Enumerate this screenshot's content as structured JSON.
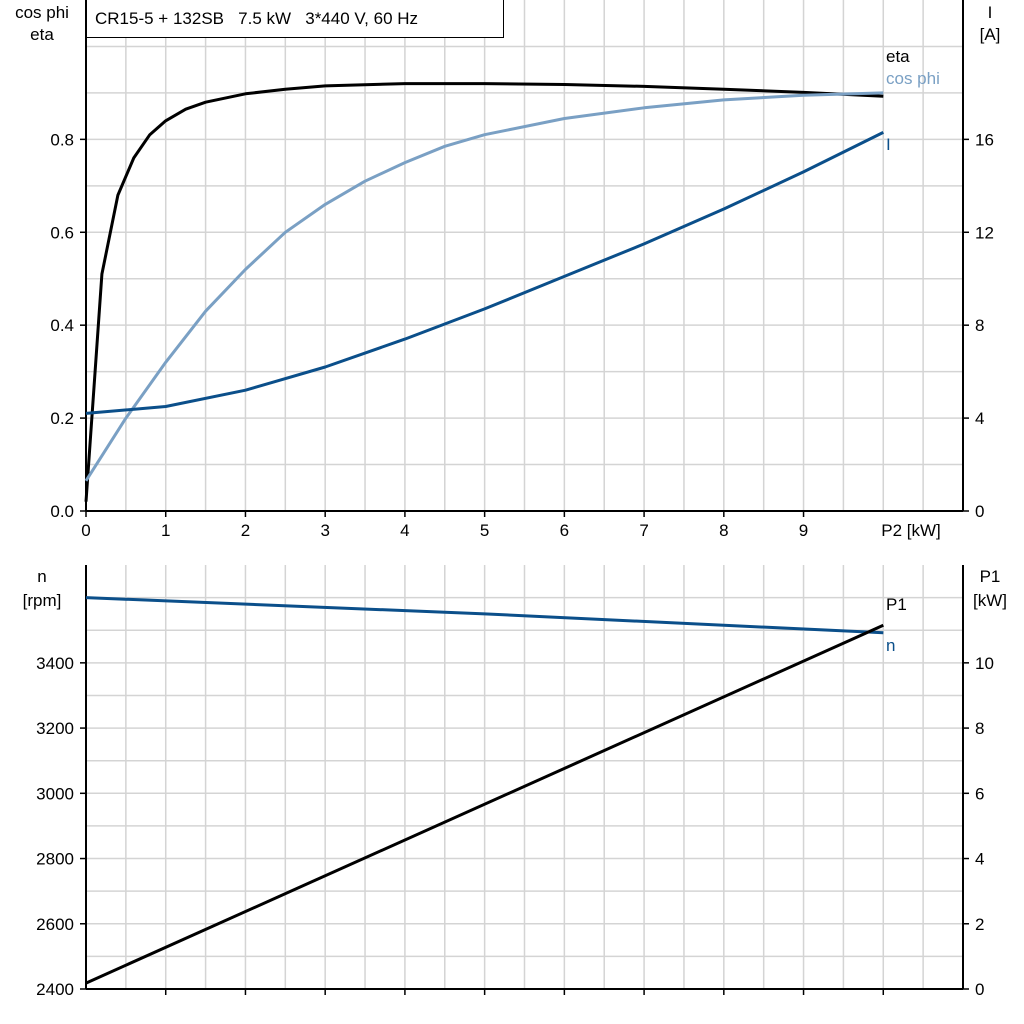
{
  "title": "CR15-5 + 132SB   7.5 kW   3*440 V, 60 Hz",
  "chart_data": [
    {
      "type": "line",
      "xlabel": "P2 [kW]",
      "xlim": [
        0,
        11
      ],
      "xticks": [
        0,
        1,
        2,
        3,
        4,
        5,
        6,
        7,
        8,
        9
      ],
      "ylabel_left": [
        "cos phi",
        "eta"
      ],
      "ylim_left": [
        0,
        1.1
      ],
      "yticks_left": [
        "0.0",
        "0.2",
        "0.4",
        "0.6",
        "0.8"
      ],
      "ylabel_right": [
        "I",
        "[A]"
      ],
      "ylim_right": [
        0,
        22
      ],
      "yticks_right": [
        "0",
        "4",
        "8",
        "12",
        "16"
      ],
      "grid": true,
      "series": [
        {
          "name": "eta",
          "axis": "left",
          "color": "#000000",
          "x": [
            0,
            0.2,
            0.4,
            0.6,
            0.8,
            1,
            1.25,
            1.5,
            2,
            2.5,
            3,
            4,
            5,
            6,
            7,
            8,
            9,
            10
          ],
          "y": [
            0.02,
            0.51,
            0.68,
            0.76,
            0.81,
            0.84,
            0.865,
            0.88,
            0.898,
            0.908,
            0.915,
            0.92,
            0.92,
            0.918,
            0.914,
            0.908,
            0.901,
            0.893
          ]
        },
        {
          "name": "cos phi",
          "axis": "left",
          "color": "#7aa0c4",
          "x": [
            0,
            0.5,
            1,
            1.5,
            2,
            2.5,
            3,
            3.5,
            4,
            4.5,
            5,
            6,
            7,
            8,
            9,
            10
          ],
          "y": [
            0.065,
            0.2,
            0.32,
            0.43,
            0.52,
            0.6,
            0.66,
            0.71,
            0.75,
            0.785,
            0.81,
            0.845,
            0.868,
            0.885,
            0.895,
            0.9
          ]
        },
        {
          "name": "I",
          "axis": "right",
          "color": "#0b4f8a",
          "x": [
            0,
            1,
            2,
            3,
            4,
            5,
            6,
            7,
            8,
            9,
            10
          ],
          "y": [
            4.2,
            4.5,
            5.2,
            6.2,
            7.4,
            8.7,
            10.1,
            11.5,
            13.0,
            14.6,
            16.3
          ]
        }
      ]
    },
    {
      "type": "line",
      "xlim": [
        0,
        11
      ],
      "ylabel_left": [
        "n",
        "[rpm]"
      ],
      "ylim_left": [
        2400,
        3700
      ],
      "yticks_left": [
        "2400",
        "2600",
        "2800",
        "3000",
        "3200",
        "3400"
      ],
      "ylabel_right": [
        "P1",
        "[kW]"
      ],
      "ylim_right": [
        0,
        13
      ],
      "yticks_right": [
        "0",
        "2",
        "4",
        "6",
        "8",
        "10"
      ],
      "grid": true,
      "series": [
        {
          "name": "n",
          "axis": "left",
          "color": "#0b4f8a",
          "x": [
            0,
            5,
            10
          ],
          "y": [
            3600,
            3550,
            3492
          ]
        },
        {
          "name": "P1",
          "axis": "right",
          "color": "#000000",
          "x": [
            0,
            10
          ],
          "y": [
            0.18,
            11.15
          ]
        }
      ]
    }
  ]
}
